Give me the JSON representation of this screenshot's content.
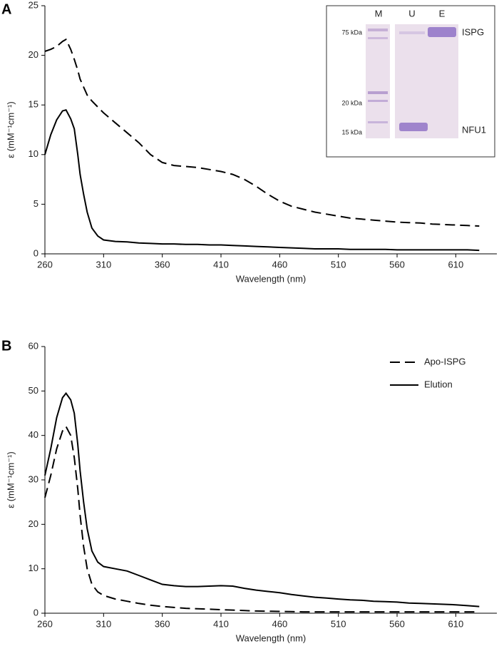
{
  "chart_data": [
    {
      "type": "line",
      "panel": "A",
      "xlabel": "Wavelength (nm)",
      "ylabel": "ε (mM⁻¹cm⁻¹)",
      "xlim": [
        260,
        645
      ],
      "ylim": [
        0,
        25
      ],
      "xticks": [
        260,
        310,
        360,
        410,
        460,
        510,
        560,
        610
      ],
      "yticks": [
        0,
        5,
        10,
        15,
        20,
        25
      ],
      "x": [
        260,
        265,
        270,
        275,
        278,
        282,
        285,
        288,
        290,
        293,
        296,
        300,
        305,
        310,
        320,
        330,
        340,
        350,
        360,
        370,
        380,
        390,
        400,
        410,
        420,
        430,
        440,
        450,
        460,
        470,
        480,
        490,
        500,
        510,
        520,
        530,
        540,
        550,
        560,
        570,
        580,
        590,
        600,
        610,
        620,
        630
      ],
      "series": [
        {
          "color": "#000000",
          "dash": true,
          "values": [
            20.4,
            20.6,
            20.9,
            21.4,
            21.6,
            20.6,
            19.6,
            18.5,
            17.6,
            16.8,
            16.0,
            15.4,
            14.8,
            14.2,
            13.2,
            12.2,
            11.2,
            10.0,
            9.2,
            8.9,
            8.8,
            8.7,
            8.5,
            8.3,
            8.0,
            7.5,
            6.8,
            6.0,
            5.3,
            4.8,
            4.5,
            4.2,
            4.0,
            3.8,
            3.6,
            3.5,
            3.4,
            3.3,
            3.2,
            3.15,
            3.1,
            3.0,
            2.95,
            2.9,
            2.85,
            2.8
          ]
        },
        {
          "color": "#000000",
          "dash": false,
          "values": [
            10.0,
            12.0,
            13.5,
            14.4,
            14.5,
            13.6,
            12.6,
            10.0,
            8.0,
            6.0,
            4.2,
            2.6,
            1.8,
            1.4,
            1.25,
            1.2,
            1.1,
            1.05,
            1.0,
            1.0,
            0.95,
            0.95,
            0.9,
            0.9,
            0.85,
            0.8,
            0.75,
            0.7,
            0.65,
            0.6,
            0.55,
            0.5,
            0.5,
            0.5,
            0.45,
            0.45,
            0.45,
            0.45,
            0.4,
            0.4,
            0.4,
            0.4,
            0.4,
            0.4,
            0.4,
            0.35
          ]
        }
      ],
      "inset": {
        "lanes": [
          "M",
          "U",
          "E"
        ],
        "markers": [
          "75 kDa",
          "20 kDa",
          "15 kDa"
        ],
        "bands": [
          "ISPG",
          "NFU1"
        ]
      }
    },
    {
      "type": "line",
      "panel": "B",
      "xlabel": "Wavelength (nm)",
      "ylabel": "ε (mM⁻¹cm⁻¹)",
      "xlim": [
        260,
        645
      ],
      "ylim": [
        0,
        60
      ],
      "xticks": [
        260,
        310,
        360,
        410,
        460,
        510,
        560,
        610
      ],
      "yticks": [
        0,
        10,
        20,
        30,
        40,
        50,
        60
      ],
      "legend": "upper right",
      "x": [
        260,
        265,
        270,
        275,
        278,
        282,
        285,
        288,
        290,
        293,
        296,
        300,
        305,
        310,
        320,
        330,
        340,
        350,
        360,
        370,
        380,
        390,
        400,
        410,
        420,
        430,
        440,
        450,
        460,
        470,
        480,
        490,
        500,
        510,
        520,
        530,
        540,
        550,
        560,
        570,
        580,
        590,
        600,
        610,
        620,
        630
      ],
      "series": [
        {
          "name": "Apo-ISPG",
          "color": "#000000",
          "dash": true,
          "values": [
            26,
            31,
            37,
            41,
            42,
            40,
            35,
            28,
            22,
            15,
            10,
            6.5,
            4.8,
            4.0,
            3.2,
            2.7,
            2.2,
            1.8,
            1.5,
            1.3,
            1.1,
            1.0,
            0.9,
            0.8,
            0.7,
            0.6,
            0.5,
            0.45,
            0.4,
            0.35,
            0.3,
            0.3,
            0.3,
            0.3,
            0.3,
            0.3,
            0.3,
            0.3,
            0.3,
            0.3,
            0.3,
            0.3,
            0.3,
            0.3,
            0.3,
            0.3
          ]
        },
        {
          "name": "Elution",
          "color": "#000000",
          "dash": false,
          "values": [
            31,
            37,
            44,
            48.5,
            49.5,
            48,
            45,
            38,
            32,
            25,
            19,
            14,
            11.5,
            10.5,
            10,
            9.5,
            8.5,
            7.5,
            6.5,
            6.2,
            6.0,
            6.0,
            6.1,
            6.2,
            6.1,
            5.6,
            5.2,
            4.9,
            4.6,
            4.2,
            3.9,
            3.6,
            3.4,
            3.2,
            3.0,
            2.9,
            2.7,
            2.6,
            2.5,
            2.3,
            2.2,
            2.1,
            2.0,
            1.9,
            1.7,
            1.5
          ]
        }
      ]
    }
  ]
}
